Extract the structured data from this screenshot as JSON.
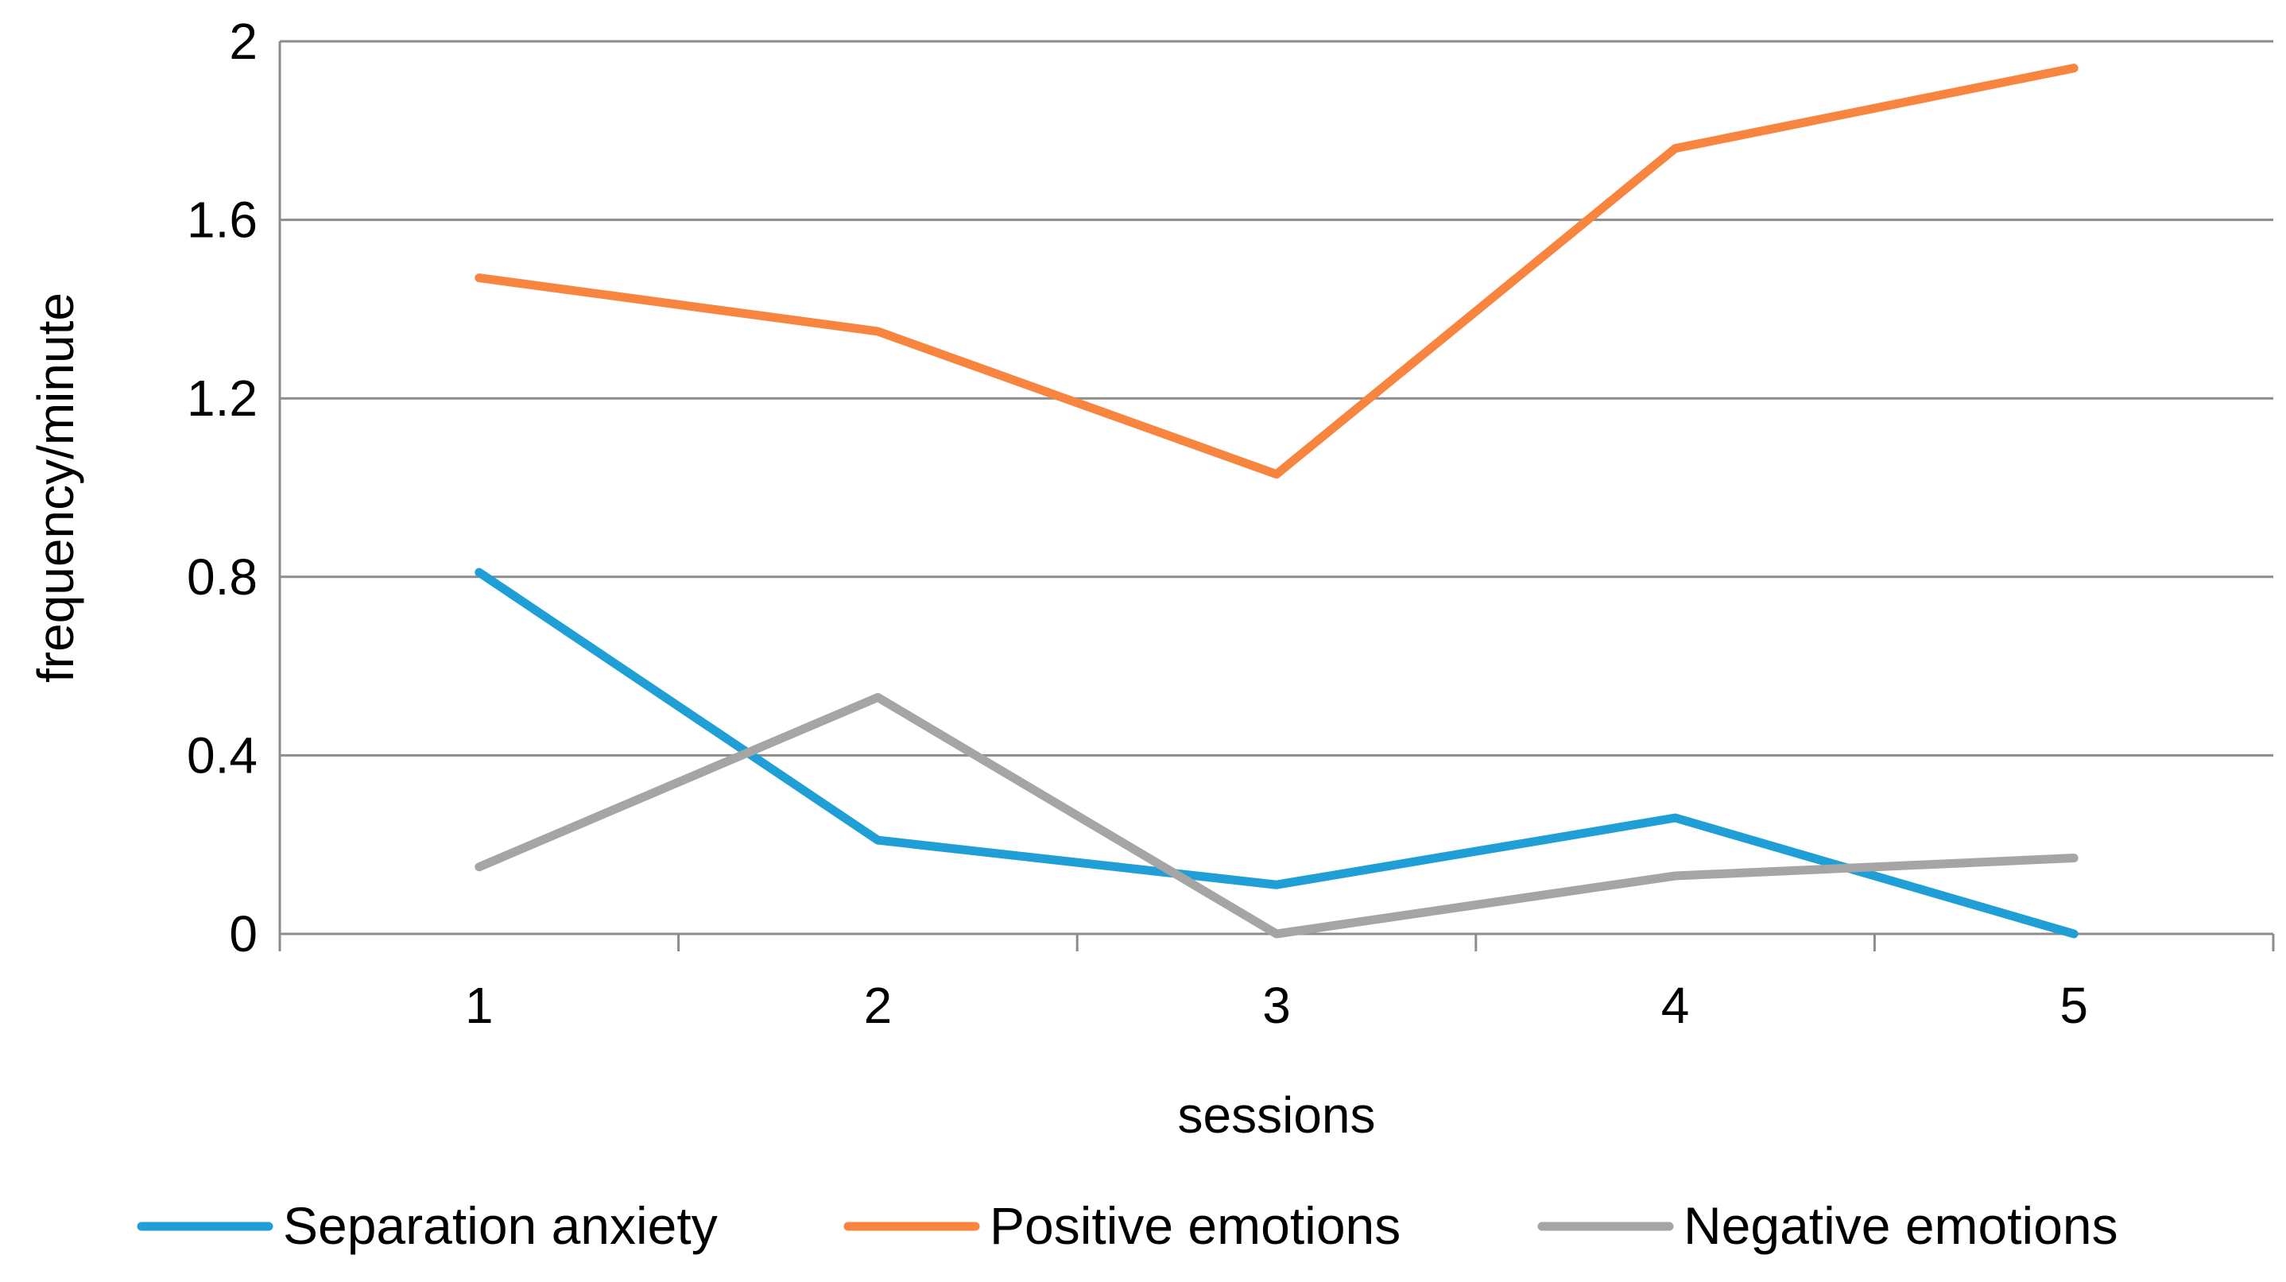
{
  "chart_data": {
    "type": "line",
    "title": "",
    "xlabel": "sessions",
    "ylabel": "frequency/minute",
    "categories": [
      "1",
      "2",
      "3",
      "4",
      "5"
    ],
    "y_ticks": [
      "0",
      "0.4",
      "0.8",
      "1.2",
      "1.6",
      "2"
    ],
    "ylim": [
      0,
      2
    ],
    "grid": true,
    "legend_position": "bottom",
    "series": [
      {
        "name": "Separation anxiety",
        "color": "#1f9fd6",
        "values": [
          0.81,
          0.21,
          0.11,
          0.26,
          0.0
        ]
      },
      {
        "name": "Positive emotions",
        "color": "#f7853f",
        "values": [
          1.47,
          1.35,
          1.03,
          1.76,
          1.94
        ]
      },
      {
        "name": "Negative emotions",
        "color": "#a5a5a5",
        "values": [
          0.15,
          0.53,
          0.0,
          0.13,
          0.17
        ]
      }
    ]
  }
}
